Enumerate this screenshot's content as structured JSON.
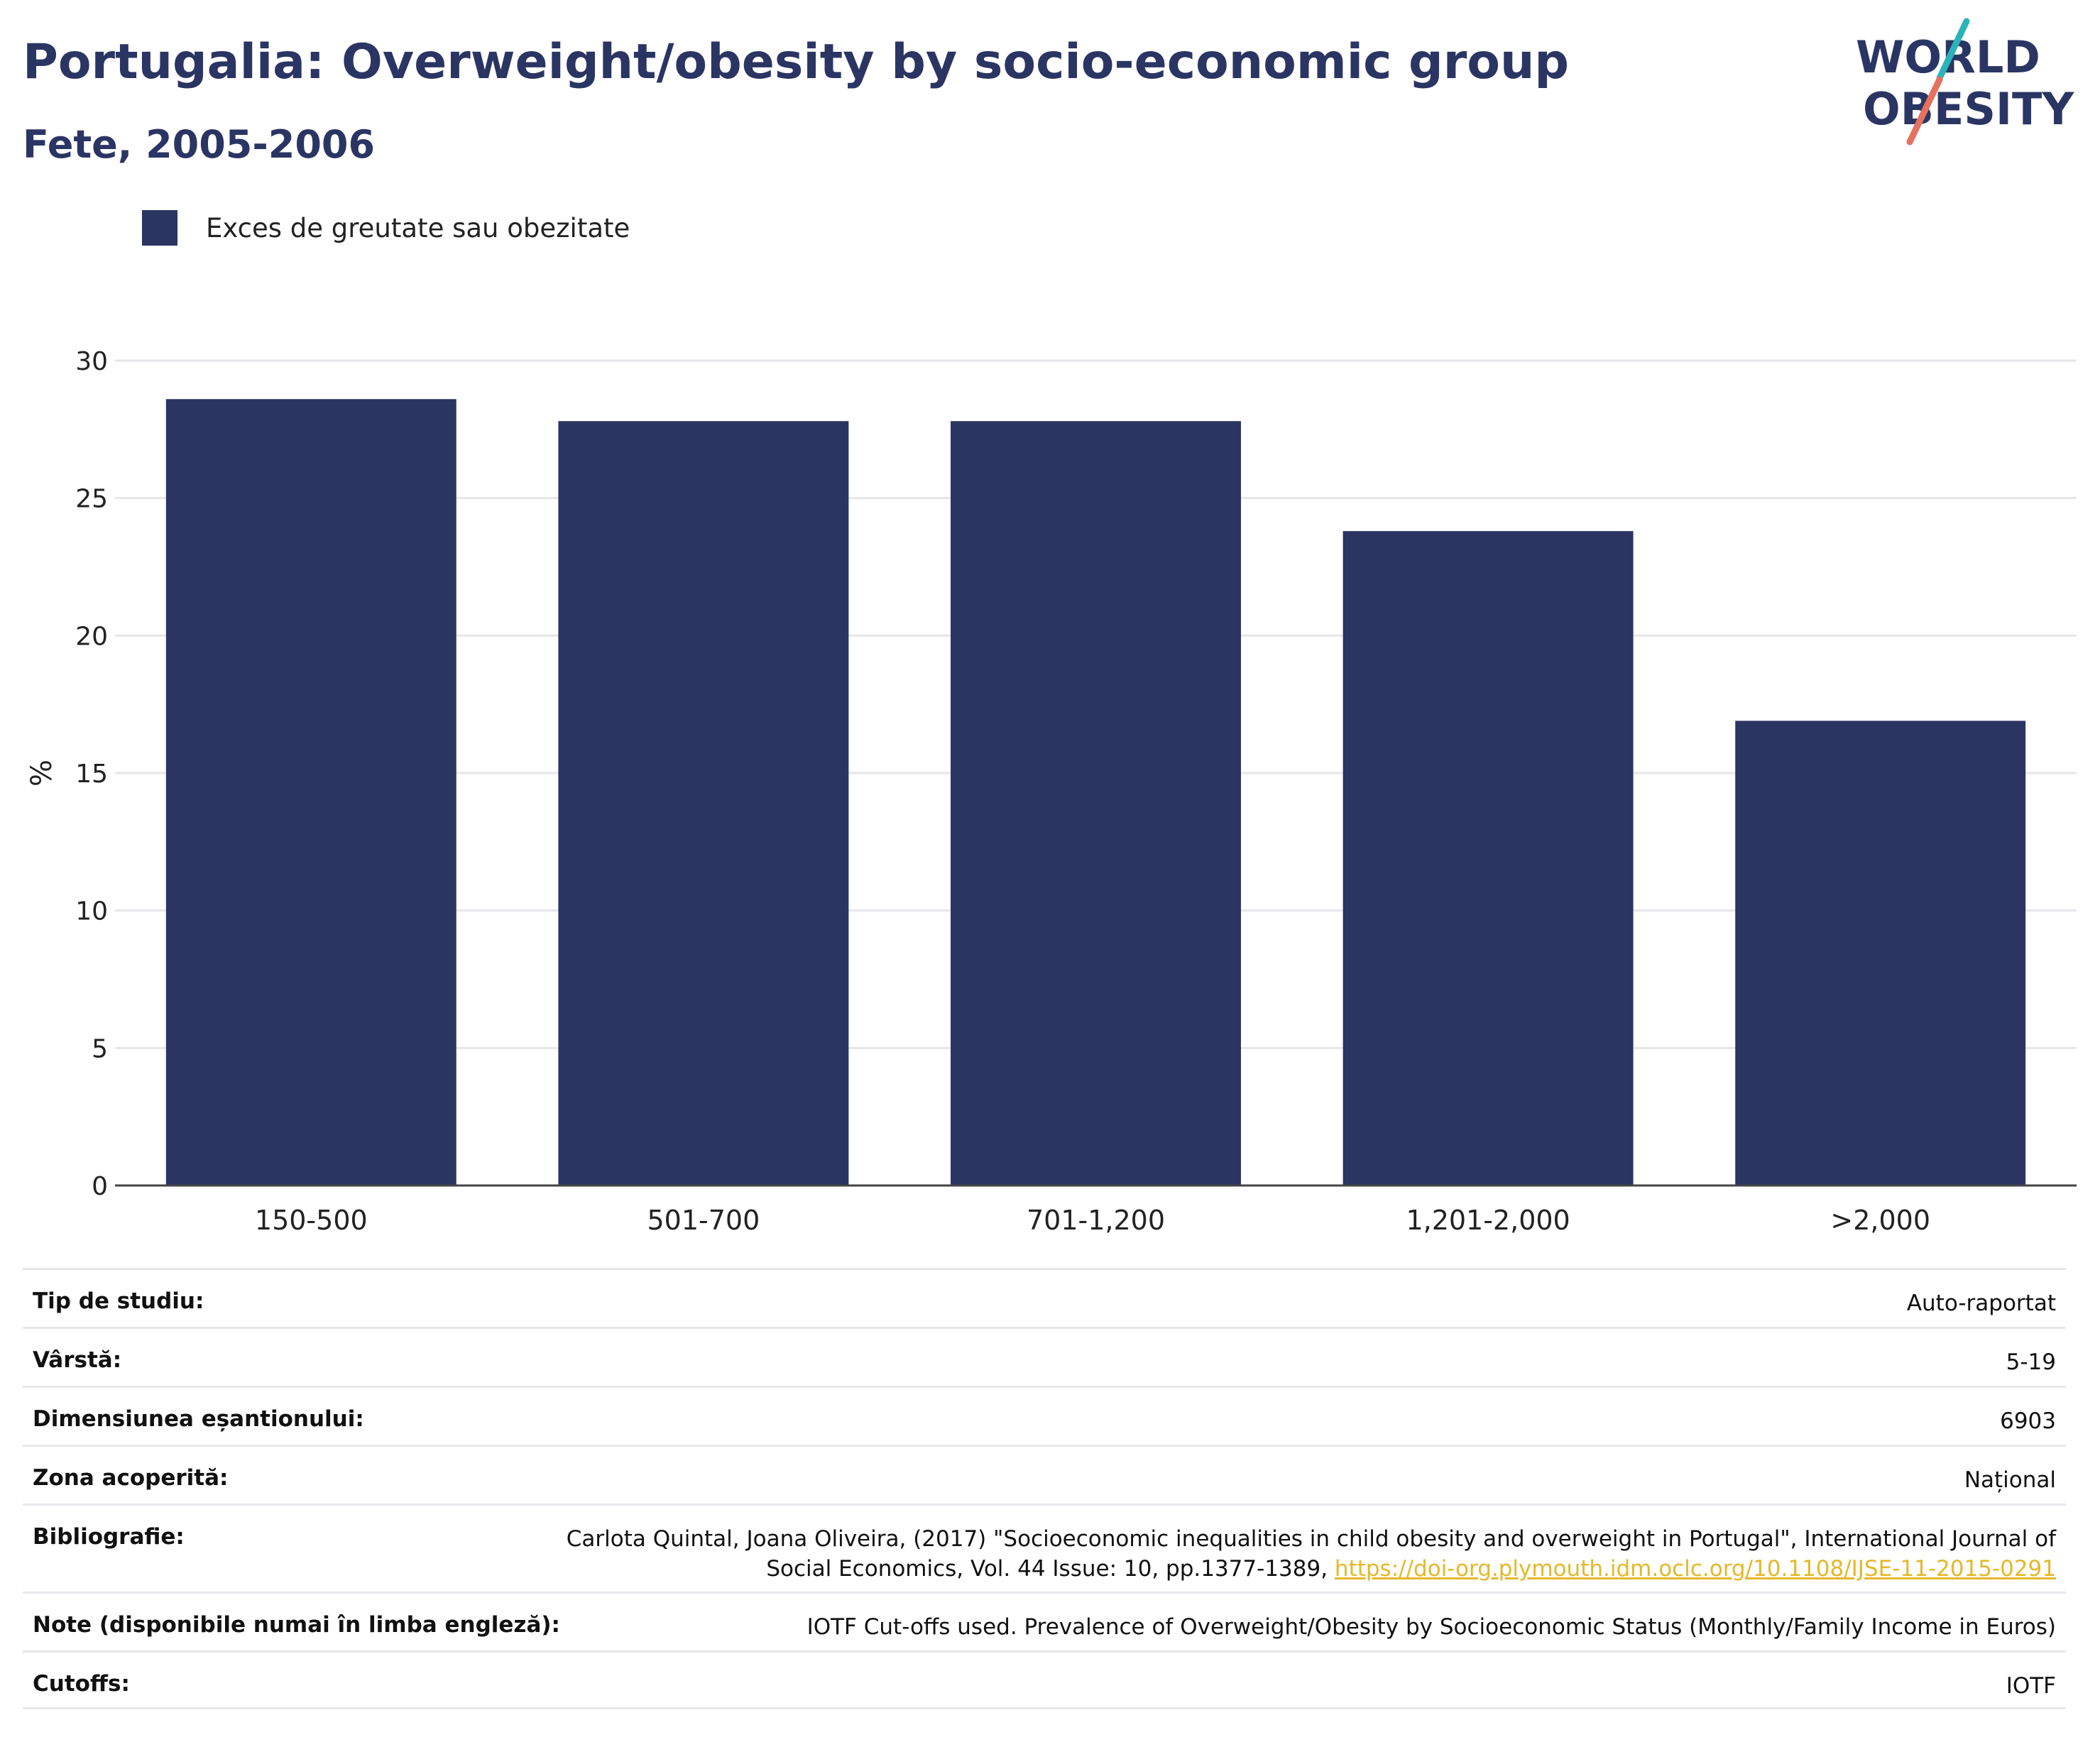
{
  "header": {
    "title": "Portugalia: Overweight/obesity by socio-economic group",
    "subtitle": "Fete, 2005-2006"
  },
  "logo": {
    "line1": "WORLD",
    "line2": "OBESITY"
  },
  "colors": {
    "bar": "#2a3561",
    "accent_teal": "#2ab3b8",
    "accent_coral": "#e4725f",
    "link": "#e5b82a"
  },
  "chart_data": {
    "type": "bar",
    "legend": [
      "Exces de greutate sau obezitate"
    ],
    "legend_position": "top-left",
    "categories": [
      "150-500",
      "501-700",
      "701-1,200",
      "1,201-2,000",
      ">2,000"
    ],
    "series": [
      {
        "name": "Exces de greutate sau obezitate",
        "values": [
          28.6,
          27.8,
          27.8,
          23.8,
          16.9
        ]
      }
    ],
    "ylabel": "%",
    "ylim": [
      0,
      30
    ],
    "yticks": [
      0,
      5,
      10,
      15,
      20,
      25,
      30
    ],
    "grid": true
  },
  "info": {
    "rows": [
      {
        "label": "Tip de studiu:",
        "value": "Auto-raportat"
      },
      {
        "label": "Vârstă:",
        "value": "5-19"
      },
      {
        "label": "Dimensiunea eșantionului:",
        "value": "6903"
      },
      {
        "label": "Zona acoperită:",
        "value": "Național"
      },
      {
        "label": "Bibliografie:",
        "value": "Carlota Quintal, Joana Oliveira, (2017) \"Socioeconomic inequalities in child obesity and overweight in Portugal\", International Journal of Social Economics, Vol. 44 Issue: 10, pp.1377-1389,",
        "link": "https://doi-org.plymouth.idm.oclc.org/10.1108/IJSE-11-2015-0291"
      },
      {
        "label": "Note (disponibile numai în limba engleză):",
        "value": "IOTF Cut-offs used. Prevalence of Overweight/Obesity by Socioeconomic Status (Monthly/Family Income in Euros)"
      },
      {
        "label": "Cutoffs:",
        "value": "IOTF"
      }
    ]
  }
}
